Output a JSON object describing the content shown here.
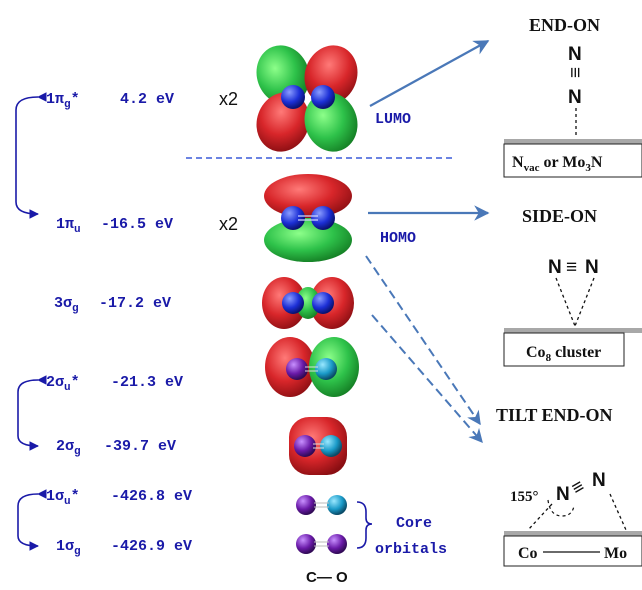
{
  "colors": {
    "label_blue": "#1a1aa8",
    "arrow_blue": "#4a78b8",
    "lobe_red": "#d8262a",
    "lobe_green": "#2ec24a",
    "atom_blue": "#1c2fd6",
    "atom_purple": "#6a1aa8",
    "atom_teal": "#1a9ac8",
    "substrate_gray": "#a8a8a8"
  },
  "orbitals": [
    {
      "id": "lumo",
      "name": "1π",
      "sub": "g",
      "star": "*",
      "energy": "4.2 eV",
      "mult": "x2",
      "tag": "LUMO"
    },
    {
      "id": "homo",
      "name": "1π",
      "sub": "u",
      "star": "",
      "energy": "-16.5 eV",
      "mult": "x2",
      "tag": "HOMO"
    },
    {
      "id": "3sg",
      "name": "3σ",
      "sub": "g",
      "star": "",
      "energy": "-17.2 eV",
      "mult": "",
      "tag": ""
    },
    {
      "id": "2su",
      "name": "2σ",
      "sub": "u",
      "star": "*",
      "energy": "-21.3 eV",
      "mult": "",
      "tag": ""
    },
    {
      "id": "2sg",
      "name": "2σ",
      "sub": "g",
      "star": "",
      "energy": "-39.7 eV",
      "mult": "",
      "tag": ""
    },
    {
      "id": "1su",
      "name": "1σ",
      "sub": "u",
      "star": "*",
      "energy": "-426.8 eV",
      "mult": "",
      "tag": ""
    },
    {
      "id": "1sg",
      "name": "1σ",
      "sub": "g",
      "star": "",
      "energy": "-426.9 eV",
      "mult": "",
      "tag": ""
    }
  ],
  "core_label": [
    "Core",
    "orbitals"
  ],
  "molecule_label": "C— O",
  "modes": [
    {
      "id": "end-on",
      "title": "END-ON",
      "box_main": "N",
      "box_sub": "vac",
      "box_rest": " or Mo",
      "box_sub2": "3",
      "box_tail": "N"
    },
    {
      "id": "side-on",
      "title": "SIDE-ON",
      "box_main": "Co",
      "box_sub": "8",
      "box_rest": " cluster",
      "box_sub2": "",
      "box_tail": ""
    },
    {
      "id": "tilt",
      "title": "TILT END-ON",
      "box_left": "Co",
      "box_right": "Mo",
      "angle": "155°"
    }
  ],
  "atoms": {
    "n": "N",
    "triple": "≡"
  }
}
